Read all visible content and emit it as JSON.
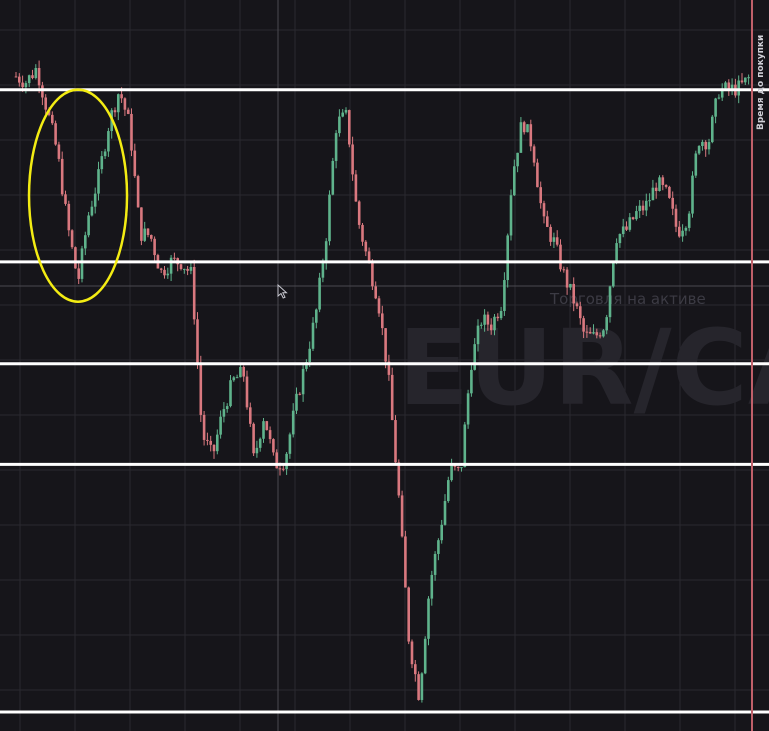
{
  "chart_data": {
    "type": "candlestick",
    "title": "",
    "xlabel": "",
    "ylabel": "",
    "grid": true,
    "watermark": {
      "pair": "EUR/CA",
      "subtitle": "Торговля на активе"
    },
    "time_label": "Время до покупки",
    "colors": {
      "background": "#16151a",
      "up": "#5fb38c",
      "down": "#d9787f",
      "level_line": "#ffffff",
      "highlight_ellipse": "#f3ec13",
      "time_marker": "#c0606a"
    },
    "close_path": [
      96.0,
      95.2,
      97.3,
      91.0,
      84.5,
      73.4,
      65.0,
      75.0,
      80.9,
      89.0,
      94.0,
      88.5,
      72.3,
      72.0,
      66.4,
      68.0,
      68.0,
      66.0,
      42.0,
      38.5,
      45.4,
      50.0,
      51.3,
      38.0,
      45.0,
      37.4,
      38.0,
      46.0,
      52.8,
      60.0,
      72.0,
      89.0,
      90.0,
      75.0,
      68.3,
      62.6,
      50.9,
      33.0,
      11.0,
      2.4,
      19.0,
      27.2,
      36.8,
      36.0,
      52.6,
      59.2,
      58.5,
      61.9,
      81.0,
      89.5,
      85.3,
      73.9,
      71.2,
      66.0,
      62.0,
      56.8,
      56.6,
      58.7,
      71.8,
      72.7,
      75.3,
      76.6,
      80.0,
      78.0,
      72.5,
      74.9,
      86.5,
      86.2,
      94.0,
      94.0,
      94.3,
      95.9
    ],
    "levels": [
      94.0,
      68.0,
      52.6,
      37.4,
      0.0
    ],
    "highlight_region": {
      "start_index": 3,
      "end_index": 9
    },
    "ylim": [
      0,
      100
    ]
  }
}
